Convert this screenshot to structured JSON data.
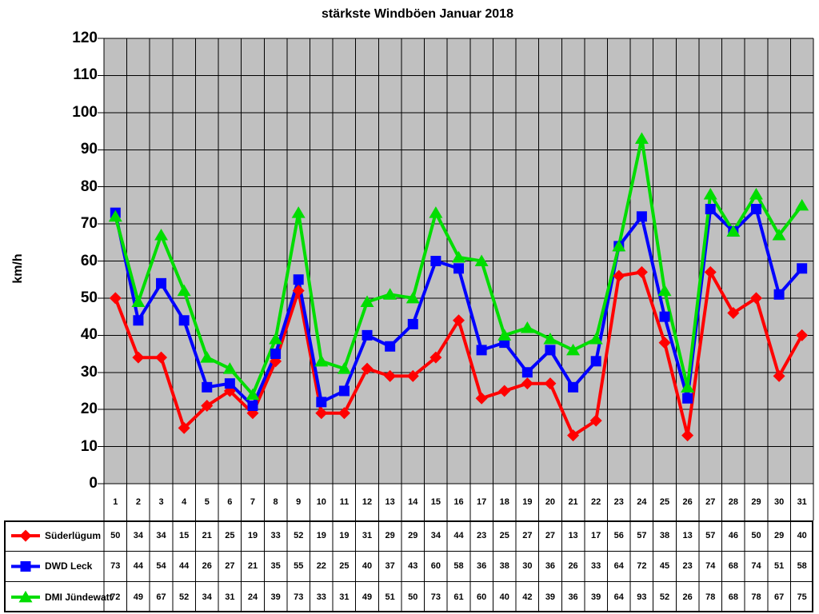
{
  "chart_data": {
    "type": "line",
    "title": "stärkste Windböen Januar 2018",
    "ylabel": "km/h",
    "ylim": [
      0,
      120
    ],
    "ytick_step": 10,
    "grid": true,
    "plot_bg": "#c0c0c0",
    "grid_color": "#000000",
    "legend_position": "table-left",
    "categories": [
      1,
      2,
      3,
      4,
      5,
      6,
      7,
      8,
      9,
      10,
      11,
      12,
      13,
      14,
      15,
      16,
      17,
      18,
      19,
      20,
      21,
      22,
      23,
      24,
      25,
      26,
      27,
      28,
      29,
      30,
      31
    ],
    "series": [
      {
        "name": "Süderlügum",
        "color": "#ff0000",
        "marker": "diamond",
        "values": [
          50,
          34,
          34,
          15,
          21,
          25,
          19,
          33,
          52,
          19,
          19,
          31,
          29,
          29,
          34,
          44,
          23,
          25,
          27,
          27,
          13,
          17,
          56,
          57,
          38,
          13,
          57,
          46,
          50,
          29,
          40
        ]
      },
      {
        "name": "DWD Leck",
        "color": "#0000ff",
        "marker": "square",
        "values": [
          73,
          44,
          54,
          44,
          26,
          27,
          21,
          35,
          55,
          22,
          25,
          40,
          37,
          43,
          60,
          58,
          36,
          38,
          30,
          36,
          26,
          33,
          64,
          72,
          45,
          23,
          74,
          68,
          74,
          51,
          58
        ]
      },
      {
        "name": "DMI Jündewatt",
        "color": "#00dd00",
        "marker": "triangle",
        "values": [
          72,
          49,
          67,
          52,
          34,
          31,
          24,
          39,
          73,
          33,
          31,
          49,
          51,
          50,
          73,
          61,
          60,
          40,
          42,
          39,
          36,
          39,
          64,
          93,
          52,
          26,
          78,
          68,
          78,
          67,
          75
        ]
      }
    ]
  }
}
